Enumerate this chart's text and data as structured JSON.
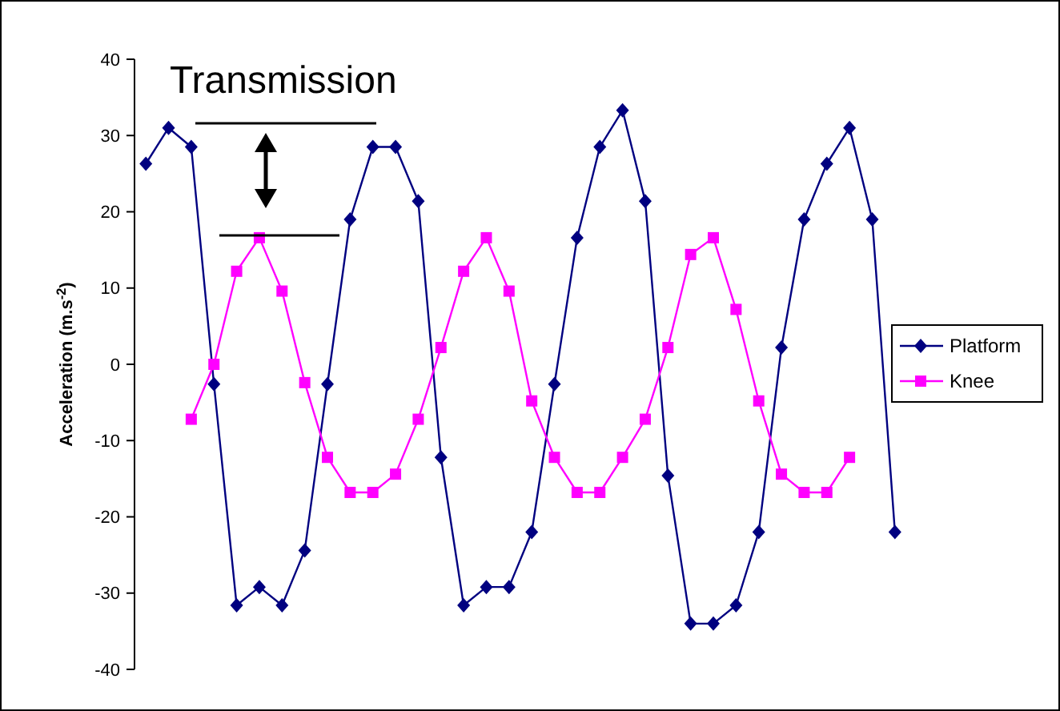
{
  "chart_data": {
    "type": "line",
    "ylabel": "Acceleration (m.s$^{-2}$)",
    "annotations": [
      "Transmission"
    ],
    "categories": [
      null,
      null,
      null,
      null,
      null,
      null,
      null,
      null,
      null,
      null,
      null,
      null,
      null,
      null,
      null,
      null,
      null,
      null,
      null,
      null,
      null,
      null,
      null,
      null,
      null,
      null,
      null,
      null,
      null,
      null,
      null,
      null,
      null,
      null
    ],
    "ylim": [
      -40,
      40
    ],
    "yticks": [
      -40,
      -30,
      -20,
      -10,
      0,
      10,
      20,
      30,
      40
    ],
    "grid": false,
    "legend": "right",
    "series": [
      {
        "name": "Platform",
        "color": "#000080",
        "marker": "diamond",
        "values": [
          26.3,
          31,
          28.5,
          -2.6,
          -31.6,
          -29.2,
          -31.6,
          -24.4,
          -2.6,
          19,
          28.5,
          28.5,
          21.4,
          -12.2,
          -31.6,
          -29.2,
          -29.2,
          -22,
          -2.6,
          16.6,
          28.5,
          33.3,
          21.4,
          -14.6,
          -34,
          -34,
          -31.6,
          -22,
          2.2,
          19,
          26.3,
          31,
          19,
          -22
        ]
      },
      {
        "name": "Knee",
        "color": "#ff00ff",
        "marker": "square",
        "values": [
          null,
          null,
          -7.2,
          0,
          12.2,
          16.6,
          9.6,
          -2.4,
          -12.2,
          -16.8,
          -16.8,
          -14.4,
          -7.2,
          2.2,
          12.2,
          16.6,
          9.6,
          -4.8,
          -12.2,
          -16.8,
          -16.8,
          -12.2,
          -7.2,
          2.2,
          14.4,
          16.6,
          7.2,
          -4.8,
          -14.4,
          -16.8,
          -16.8,
          -12.2,
          null,
          null
        ]
      }
    ]
  }
}
